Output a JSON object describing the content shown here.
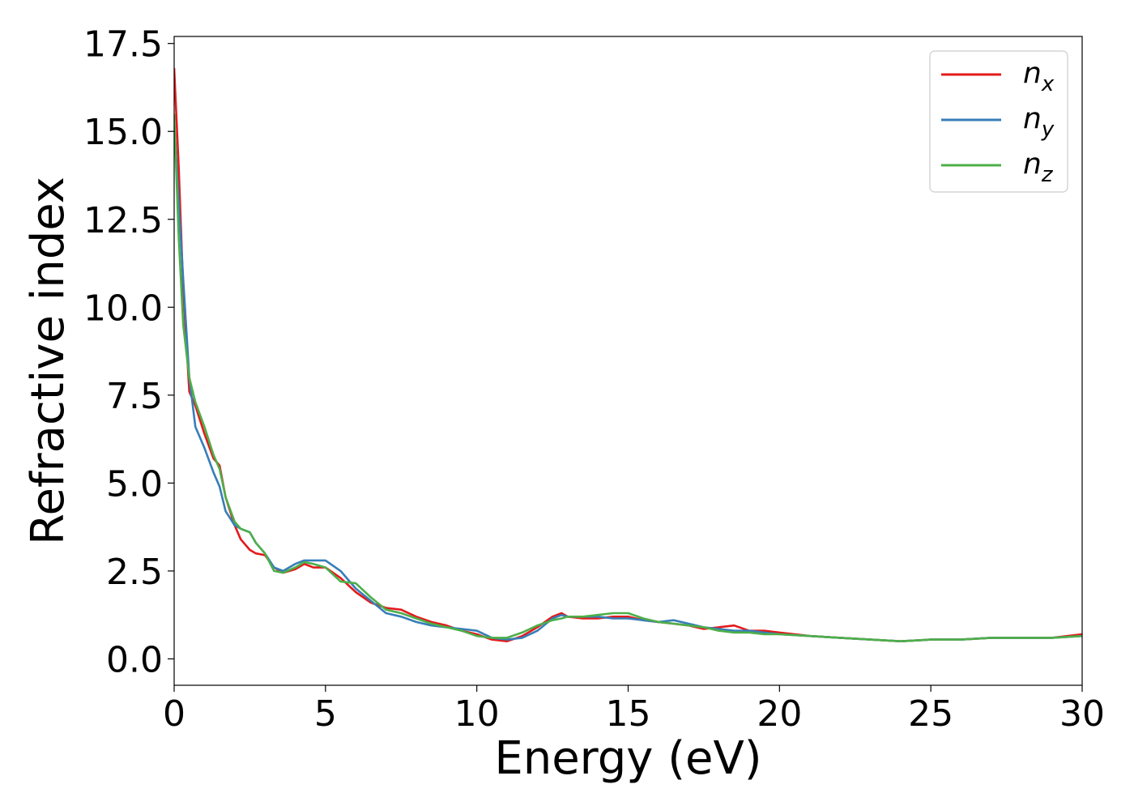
{
  "chart_data": {
    "type": "line",
    "xlabel": "Energy (eV)",
    "ylabel": "Refractive index",
    "xlim": [
      0,
      30
    ],
    "ylim": [
      -0.75,
      17.7
    ],
    "xticks": [
      0,
      5,
      10,
      15,
      20,
      25,
      30
    ],
    "xtick_labels": [
      "0",
      "5",
      "10",
      "15",
      "20",
      "25",
      "30"
    ],
    "yticks": [
      0,
      2.5,
      5,
      7.5,
      10,
      12.5,
      15,
      17.5
    ],
    "ytick_labels": [
      "0.0",
      "2.5",
      "5.0",
      "7.5",
      "10.0",
      "12.5",
      "15.0",
      "17.5"
    ],
    "grid": false,
    "legend_position": "top-right",
    "series": [
      {
        "name": "n_x",
        "label_base": "n",
        "label_sub": "x",
        "color": "#e41a1c",
        "x": [
          0,
          0.15,
          0.3,
          0.5,
          0.7,
          1.0,
          1.3,
          1.5,
          1.7,
          2.0,
          2.2,
          2.5,
          2.7,
          3.0,
          3.3,
          3.6,
          4.0,
          4.3,
          4.6,
          5.0,
          5.5,
          6.0,
          6.5,
          7.0,
          7.5,
          8.0,
          8.5,
          9.0,
          9.5,
          10.0,
          10.5,
          11.0,
          11.5,
          12.0,
          12.5,
          12.8,
          13.0,
          13.5,
          14.0,
          14.5,
          15.0,
          15.5,
          16.0,
          16.5,
          17.0,
          17.5,
          18.0,
          18.5,
          19.0,
          19.5,
          20.0,
          21.0,
          22.0,
          23.0,
          24.0,
          25.0,
          26.0,
          27.0,
          28.0,
          29.0,
          30.0
        ],
        "values": [
          16.8,
          14.0,
          10.5,
          7.6,
          7.2,
          6.4,
          5.7,
          5.5,
          4.6,
          3.8,
          3.4,
          3.1,
          3.0,
          2.95,
          2.6,
          2.45,
          2.55,
          2.7,
          2.6,
          2.6,
          2.3,
          1.9,
          1.6,
          1.45,
          1.4,
          1.2,
          1.05,
          0.95,
          0.8,
          0.7,
          0.55,
          0.5,
          0.65,
          0.9,
          1.2,
          1.3,
          1.2,
          1.15,
          1.15,
          1.2,
          1.2,
          1.1,
          1.05,
          1.0,
          0.95,
          0.85,
          0.9,
          0.95,
          0.8,
          0.8,
          0.75,
          0.65,
          0.6,
          0.55,
          0.5,
          0.55,
          0.55,
          0.6,
          0.6,
          0.6,
          0.7
        ]
      },
      {
        "name": "n_y",
        "label_base": "n",
        "label_sub": "y",
        "color": "#377eb8",
        "x": [
          0,
          0.15,
          0.3,
          0.5,
          0.7,
          1.0,
          1.3,
          1.5,
          1.7,
          2.0,
          2.2,
          2.5,
          2.7,
          3.0,
          3.3,
          3.6,
          4.0,
          4.3,
          4.6,
          5.0,
          5.5,
          6.0,
          6.5,
          7.0,
          7.5,
          8.0,
          8.5,
          9.0,
          9.5,
          10.0,
          10.5,
          11.0,
          11.5,
          12.0,
          12.5,
          12.8,
          13.0,
          13.5,
          14.0,
          14.5,
          15.0,
          15.5,
          16.0,
          16.5,
          17.0,
          17.5,
          18.0,
          18.5,
          19.0,
          19.5,
          20.0,
          21.0,
          22.0,
          23.0,
          24.0,
          25.0,
          26.0,
          27.0,
          28.0,
          29.0,
          30.0
        ],
        "values": [
          15.3,
          13.0,
          10.8,
          8.0,
          6.6,
          6.0,
          5.3,
          4.9,
          4.2,
          3.8,
          3.7,
          3.6,
          3.3,
          3.0,
          2.6,
          2.5,
          2.7,
          2.8,
          2.8,
          2.8,
          2.5,
          2.0,
          1.65,
          1.3,
          1.2,
          1.05,
          0.95,
          0.9,
          0.85,
          0.8,
          0.6,
          0.55,
          0.6,
          0.8,
          1.15,
          1.25,
          1.2,
          1.2,
          1.2,
          1.15,
          1.15,
          1.1,
          1.05,
          1.1,
          1.0,
          0.9,
          0.85,
          0.8,
          0.8,
          0.75,
          0.7,
          0.65,
          0.6,
          0.55,
          0.5,
          0.55,
          0.55,
          0.6,
          0.6,
          0.6,
          0.65
        ]
      },
      {
        "name": "n_z",
        "label_base": "n",
        "label_sub": "z",
        "color": "#4daf4a",
        "x": [
          0,
          0.15,
          0.3,
          0.5,
          0.7,
          1.0,
          1.3,
          1.5,
          1.7,
          2.0,
          2.2,
          2.5,
          2.7,
          3.0,
          3.3,
          3.6,
          4.0,
          4.3,
          4.6,
          5.0,
          5.5,
          6.0,
          6.5,
          7.0,
          7.5,
          8.0,
          8.5,
          9.0,
          9.5,
          10.0,
          10.5,
          11.0,
          11.5,
          12.0,
          12.5,
          12.8,
          13.0,
          13.5,
          14.0,
          14.5,
          15.0,
          15.5,
          16.0,
          16.5,
          17.0,
          17.5,
          18.0,
          18.5,
          19.0,
          19.5,
          20.0,
          21.0,
          22.0,
          23.0,
          24.0,
          25.0,
          26.0,
          27.0,
          28.0,
          29.0,
          30.0
        ],
        "values": [
          15.5,
          12.0,
          9.5,
          8.0,
          7.3,
          6.6,
          5.8,
          5.4,
          4.6,
          3.9,
          3.7,
          3.6,
          3.3,
          3.0,
          2.5,
          2.45,
          2.6,
          2.75,
          2.7,
          2.6,
          2.2,
          2.15,
          1.75,
          1.4,
          1.3,
          1.15,
          1.0,
          0.9,
          0.8,
          0.65,
          0.6,
          0.6,
          0.75,
          0.95,
          1.1,
          1.15,
          1.2,
          1.2,
          1.25,
          1.3,
          1.3,
          1.15,
          1.05,
          1.0,
          0.95,
          0.9,
          0.8,
          0.75,
          0.75,
          0.7,
          0.7,
          0.65,
          0.6,
          0.55,
          0.5,
          0.55,
          0.55,
          0.6,
          0.6,
          0.6,
          0.65
        ]
      }
    ]
  }
}
